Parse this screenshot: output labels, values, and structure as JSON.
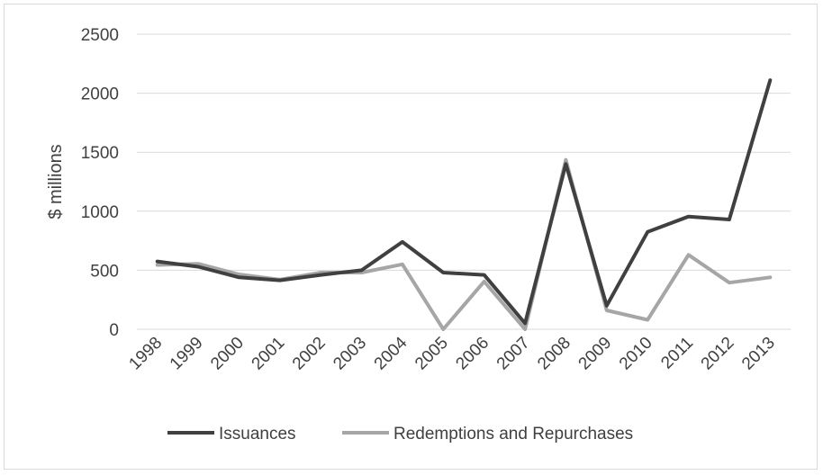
{
  "chart_data": {
    "type": "line",
    "title": "",
    "xlabel": "",
    "ylabel": "$ millions",
    "ylim": [
      0,
      2500
    ],
    "yticks": [
      0,
      500,
      1000,
      1500,
      2000,
      2500
    ],
    "grid": "horizontal",
    "legend_position": "bottom",
    "categories": [
      "1998",
      "1999",
      "2000",
      "2001",
      "2002",
      "2003",
      "2004",
      "2005",
      "2006",
      "2007",
      "2008",
      "2009",
      "2010",
      "2011",
      "2012",
      "2013"
    ],
    "series": [
      {
        "name": "Issuances",
        "color": "#404040",
        "values": [
          575,
          530,
          440,
          415,
          460,
          500,
          740,
          480,
          460,
          50,
          1400,
          200,
          825,
          955,
          930,
          2110
        ]
      },
      {
        "name": "Redemptions and Repurchases",
        "color": "#a6a6a6",
        "values": [
          545,
          555,
          465,
          420,
          480,
          480,
          550,
          0,
          405,
          0,
          1435,
          160,
          80,
          630,
          395,
          440
        ]
      }
    ]
  }
}
